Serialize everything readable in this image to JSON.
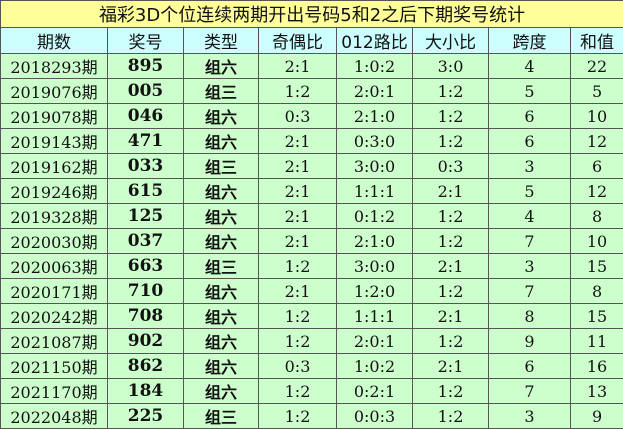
{
  "title": "福彩3D个位连续两期开出号码5和2之后下期奖号统计",
  "colors": {
    "title_bg": "#ffff99",
    "header_bg": "#ccffff",
    "row_bg": "#ccffcc"
  },
  "headers": [
    "期数",
    "奖号",
    "类型",
    "奇偶比",
    "012路比",
    "大小比",
    "跨度",
    "和值"
  ],
  "rows": [
    [
      "2018293期",
      "895",
      "组六",
      "2:1",
      "1:0:2",
      "3:0",
      "4",
      "22"
    ],
    [
      "2019076期",
      "005",
      "组三",
      "1:2",
      "2:0:1",
      "1:2",
      "5",
      "5"
    ],
    [
      "2019078期",
      "046",
      "组六",
      "0:3",
      "2:1:0",
      "1:2",
      "6",
      "10"
    ],
    [
      "2019143期",
      "471",
      "组六",
      "2:1",
      "0:3:0",
      "1:2",
      "6",
      "12"
    ],
    [
      "2019162期",
      "033",
      "组三",
      "2:1",
      "3:0:0",
      "0:3",
      "3",
      "6"
    ],
    [
      "2019246期",
      "615",
      "组六",
      "2:1",
      "1:1:1",
      "2:1",
      "5",
      "12"
    ],
    [
      "2019328期",
      "125",
      "组六",
      "2:1",
      "0:1:2",
      "1:2",
      "4",
      "8"
    ],
    [
      "2020030期",
      "037",
      "组六",
      "2:1",
      "2:1:0",
      "1:2",
      "7",
      "10"
    ],
    [
      "2020063期",
      "663",
      "组三",
      "1:2",
      "3:0:0",
      "2:1",
      "3",
      "15"
    ],
    [
      "2020171期",
      "710",
      "组六",
      "2:1",
      "1:2:0",
      "1:2",
      "7",
      "8"
    ],
    [
      "2020242期",
      "708",
      "组六",
      "1:2",
      "1:1:1",
      "2:1",
      "8",
      "15"
    ],
    [
      "2021087期",
      "902",
      "组六",
      "1:2",
      "2:0:1",
      "1:2",
      "9",
      "11"
    ],
    [
      "2021150期",
      "862",
      "组六",
      "0:3",
      "1:0:2",
      "2:1",
      "6",
      "16"
    ],
    [
      "2021170期",
      "184",
      "组六",
      "1:2",
      "0:2:1",
      "1:2",
      "7",
      "13"
    ],
    [
      "2022048期",
      "225",
      "组三",
      "1:2",
      "0:0:3",
      "1:2",
      "3",
      "9"
    ]
  ]
}
